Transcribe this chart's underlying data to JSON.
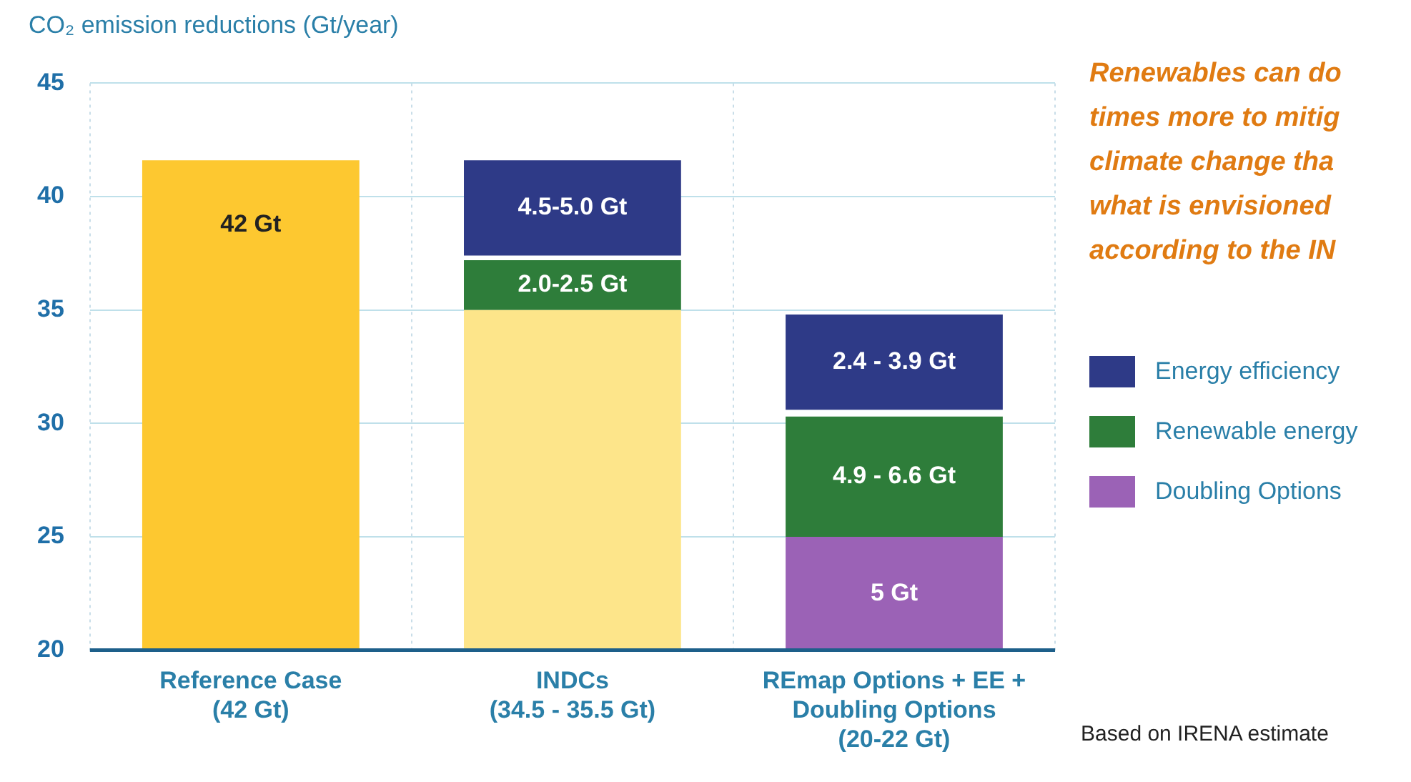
{
  "chart_data": {
    "type": "bar",
    "ylabel": "CO₂ emission reductions (Gt/year)",
    "categories": [
      "Reference Case\n(42 Gt)",
      "INDCs\n(34.5 - 35.5 Gt)",
      "REmap Options + EE +\nDoubling Options\n(20-22 Gt)"
    ],
    "series": [
      {
        "colors": [
          "#fdc830",
          "#fde58a",
          null
        ],
        "base": [
          20,
          20,
          null
        ],
        "values": [
          21.6,
          15,
          null
        ]
      },
      {
        "name": "Energy efficiency",
        "color": "#2e3a87",
        "base": [
          null,
          37.4,
          30.6
        ],
        "values": [
          null,
          4.2,
          4.2
        ]
      },
      {
        "name": "Renewable energy",
        "color": "#2e7d3a",
        "base": [
          null,
          35,
          25
        ],
        "values": [
          null,
          2.2,
          5.3
        ]
      },
      {
        "name": "Doubling Options",
        "color": "#9b62b6",
        "base": [
          null,
          null,
          20
        ],
        "values": [
          null,
          null,
          5
        ]
      }
    ],
    "ylim": [
      20,
      45
    ],
    "yticks": [
      20,
      25,
      30,
      35,
      40,
      45
    ],
    "grid": true,
    "legend": "right",
    "annotations": [
      "Renewables can do",
      "times more to mitig",
      "climate change tha",
      "what is envisioned",
      "according to the IN",
      "Based on IRENA estimate",
      {
        "text": "42 Gt",
        "x": "Reference Case\n(42 Gt)",
        "y": 41.6
      },
      {
        "text": "4.5-5.0 Gt",
        "x": "INDCs\n(34.5 - 35.5 Gt)",
        "y": 41.6
      },
      {
        "text": "2.0-2.5 Gt",
        "x": "INDCs\n(34.5 - 35.5 Gt)",
        "y": 37.2
      },
      {
        "text": "2.4 - 3.9 Gt",
        "x": "REmap Options + EE +\nDoubling Options\n(20-22 Gt)",
        "y": 34.8
      },
      {
        "text": "4.9 - 6.6 Gt",
        "x": "REmap Options + EE +\nDoubling Options\n(20-22 Gt)",
        "y": 30.3
      },
      {
        "text": "5 Gt",
        "x": "REmap Options + EE +\nDoubling Options\n(20-22 Gt)",
        "y": 25
      }
    ]
  }
}
